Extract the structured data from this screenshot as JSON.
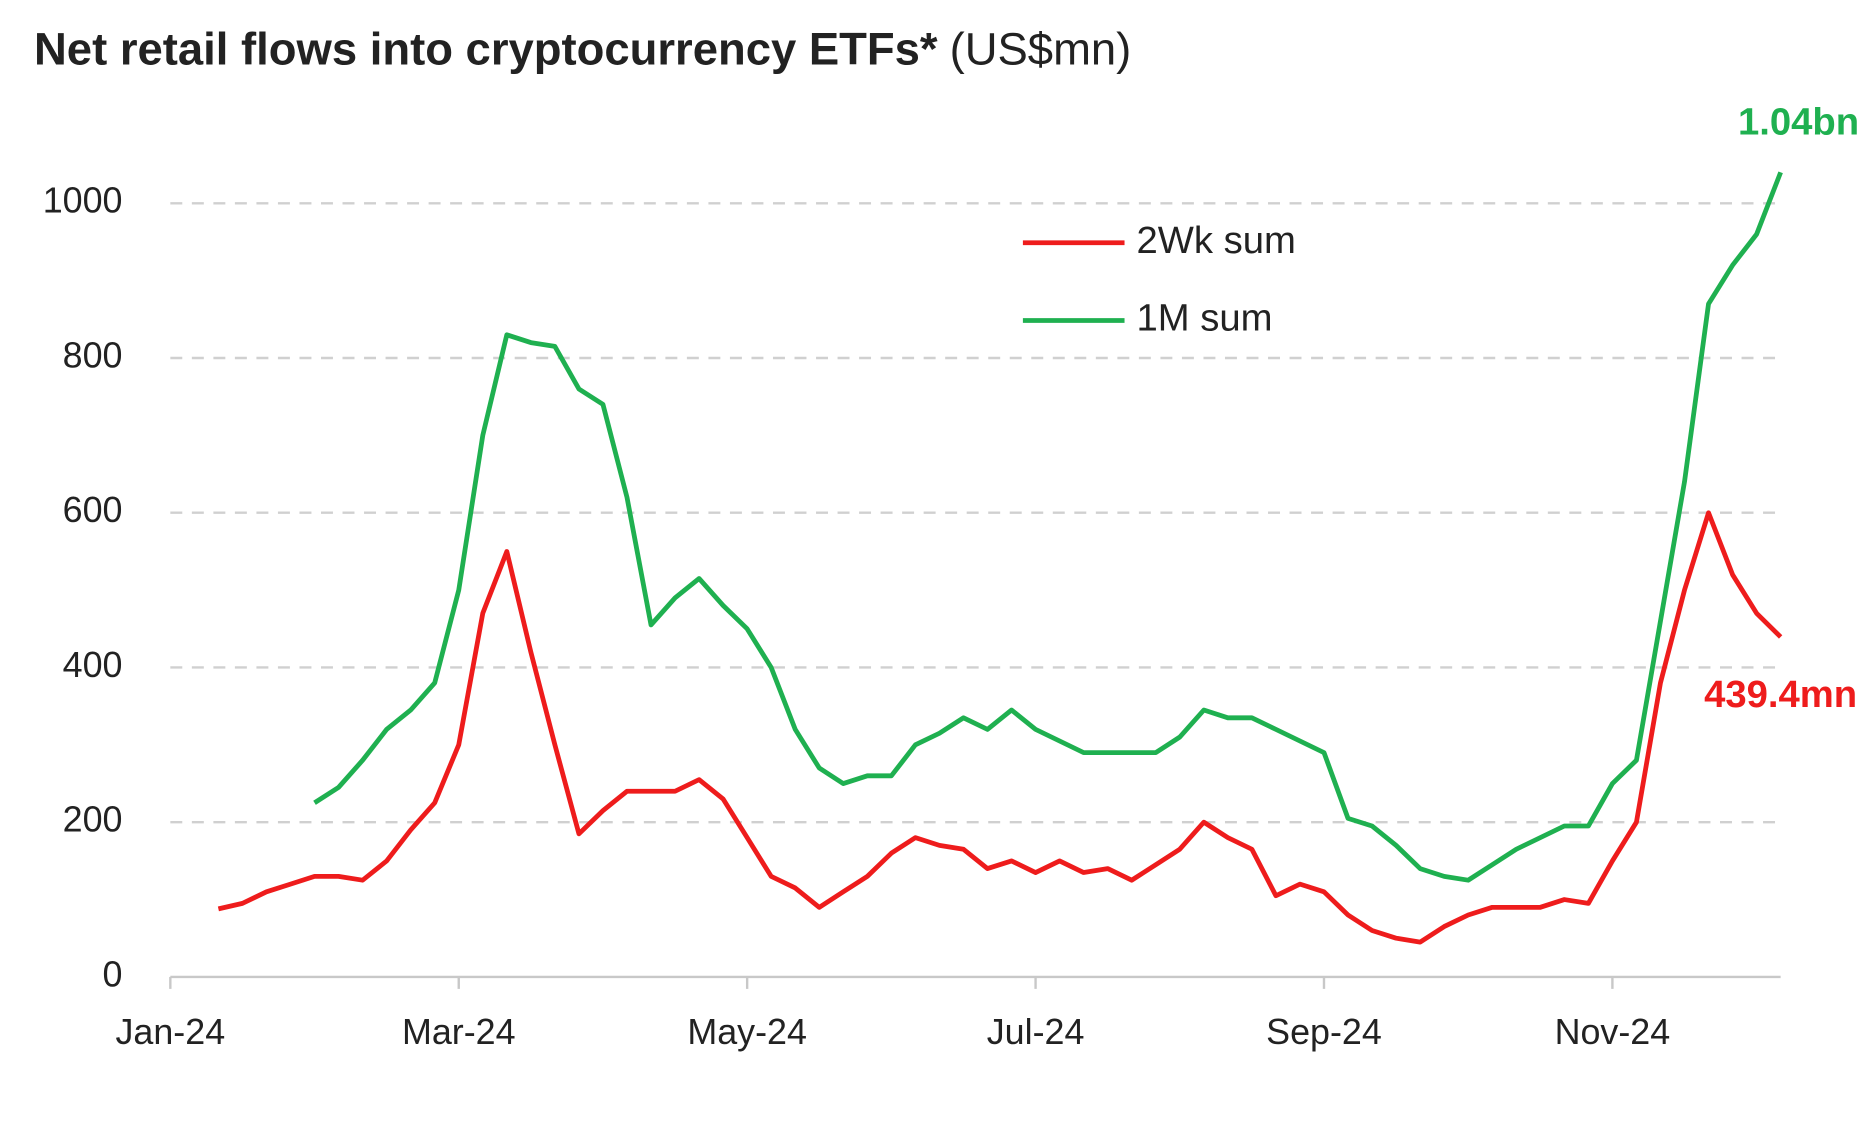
{
  "chart_data": {
    "type": "line",
    "title": "Net retail flows into cryptocurrency ETFs*",
    "subtitle": "(US$mn)",
    "categories": [
      "Jan-24",
      null,
      null,
      null,
      null,
      null,
      null,
      null,
      null,
      null,
      null,
      null,
      "Mar-24",
      null,
      null,
      null,
      null,
      null,
      null,
      null,
      null,
      null,
      null,
      null,
      "May-24",
      null,
      null,
      null,
      null,
      null,
      null,
      null,
      null,
      null,
      null,
      null,
      "Jul-24",
      null,
      null,
      null,
      null,
      null,
      null,
      null,
      null,
      null,
      null,
      null,
      "Sep-24",
      null,
      null,
      null,
      null,
      null,
      null,
      null,
      null,
      null,
      null,
      null,
      "Nov-24",
      null,
      null,
      null,
      null,
      null,
      null,
      null
    ],
    "series": [
      {
        "name": "2Wk sum",
        "color": "#ee1c1c",
        "values": [
          null,
          null,
          88,
          95,
          110,
          120,
          130,
          130,
          125,
          150,
          190,
          225,
          300,
          470,
          550,
          420,
          300,
          185,
          215,
          240,
          240,
          240,
          255,
          230,
          180,
          130,
          115,
          90,
          110,
          130,
          160,
          180,
          170,
          165,
          140,
          150,
          135,
          150,
          135,
          140,
          125,
          145,
          165,
          200,
          180,
          165,
          105,
          120,
          110,
          80,
          60,
          50,
          45,
          65,
          80,
          90,
          90,
          90,
          100,
          95,
          150,
          200,
          380,
          500,
          600,
          520,
          470,
          439.4
        ]
      },
      {
        "name": "1M sum",
        "color": "#1fb050",
        "values": [
          null,
          null,
          null,
          null,
          null,
          null,
          225,
          245,
          280,
          320,
          345,
          380,
          500,
          700,
          830,
          820,
          815,
          760,
          740,
          620,
          455,
          490,
          515,
          480,
          450,
          400,
          320,
          270,
          250,
          260,
          260,
          300,
          315,
          335,
          320,
          345,
          320,
          305,
          290,
          290,
          290,
          290,
          310,
          345,
          335,
          335,
          320,
          305,
          290,
          205,
          195,
          170,
          140,
          130,
          125,
          145,
          165,
          180,
          195,
          195,
          250,
          280,
          460,
          640,
          870,
          920,
          960,
          1040
        ]
      }
    ],
    "annotations": [
      {
        "text": "1.04bn",
        "series": 1
      },
      {
        "text": "439.4mn",
        "series": 0
      }
    ],
    "ylim": [
      0,
      1200
    ],
    "yticks": [
      0,
      200,
      400,
      600,
      800,
      1000
    ],
    "grid": true,
    "legend": "top"
  }
}
